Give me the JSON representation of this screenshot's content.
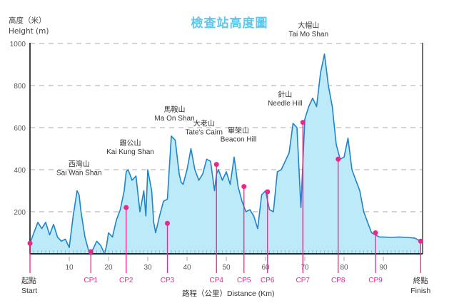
{
  "header": {
    "title": "檢查站高度圖",
    "y_label_zh": "高度（米）",
    "y_label_en": "Height (m)",
    "x_label": "路程（公里）Distance (Km)"
  },
  "colors": {
    "title": "#5cc8ec",
    "fill": "#bdeaf8",
    "line": "#1f84c8",
    "checkpoint": "#e8288a",
    "axis": "#444444",
    "grid": "#bbbbbb"
  },
  "endpoints": {
    "start_zh": "起點",
    "start_en": "Start",
    "finish_zh": "終點",
    "finish_en": "Finish"
  },
  "chart_data": {
    "type": "area",
    "title": "檢查站高度圖",
    "xlabel": "路程（公里）Distance (Km)",
    "ylabel": "高度（米）Height (m)",
    "xlim": [
      0,
      100
    ],
    "ylim": [
      0,
      1000
    ],
    "x_ticks": [
      10,
      20,
      30,
      40,
      50,
      60,
      70,
      80,
      90
    ],
    "y_ticks": [
      200,
      400,
      600,
      800,
      1000
    ],
    "grid": "horizontal dashed",
    "profile": {
      "x": [
        0,
        1,
        2,
        3,
        4,
        5,
        6,
        7,
        8,
        9,
        10,
        11,
        12,
        12.5,
        13,
        14,
        15,
        16,
        17,
        18,
        19,
        19.5,
        20,
        21,
        22,
        23,
        24,
        24.5,
        25,
        26,
        27,
        28,
        29,
        29.5,
        30,
        31,
        31.5,
        32,
        33,
        34,
        35,
        36,
        37,
        38,
        38.5,
        39,
        40,
        41,
        42,
        43,
        44,
        45,
        46,
        47,
        47.5,
        48,
        49,
        50,
        51,
        52,
        53,
        54,
        55,
        56,
        57,
        58,
        59,
        60,
        61,
        62,
        63,
        64,
        65,
        66,
        67,
        68,
        69,
        70,
        71,
        72,
        73,
        74,
        75,
        76,
        77,
        78,
        79,
        80,
        81,
        82,
        83,
        84,
        85,
        86,
        87,
        88,
        89,
        90,
        92,
        94,
        96,
        98,
        99.5
      ],
      "elevation": [
        50,
        100,
        150,
        120,
        150,
        90,
        140,
        80,
        60,
        70,
        30,
        180,
        300,
        280,
        200,
        80,
        10,
        20,
        60,
        40,
        0,
        40,
        100,
        80,
        160,
        210,
        300,
        390,
        400,
        350,
        370,
        200,
        300,
        180,
        400,
        300,
        150,
        100,
        180,
        250,
        260,
        560,
        540,
        380,
        340,
        330,
        400,
        500,
        400,
        350,
        380,
        450,
        440,
        300,
        380,
        400,
        350,
        390,
        330,
        460,
        320,
        250,
        200,
        210,
        180,
        120,
        280,
        300,
        210,
        200,
        390,
        400,
        440,
        480,
        620,
        600,
        220,
        640,
        700,
        740,
        700,
        860,
        950,
        800,
        700,
        520,
        450,
        460,
        550,
        400,
        350,
        300,
        200,
        150,
        100,
        90,
        80,
        80,
        78,
        80,
        78,
        75,
        60
      ]
    },
    "checkpoints": [
      {
        "label": "Start",
        "km": 0,
        "elevation": 50
      },
      {
        "label": "CP1",
        "km": 15.5,
        "elevation": 10
      },
      {
        "label": "CP2",
        "km": 24.5,
        "elevation": 220
      },
      {
        "label": "CP3",
        "km": 35,
        "elevation": 145
      },
      {
        "label": "CP4",
        "km": 47.5,
        "elevation": 425
      },
      {
        "label": "CP5",
        "km": 54.5,
        "elevation": 320
      },
      {
        "label": "CP6",
        "km": 60.5,
        "elevation": 295
      },
      {
        "label": "CP7",
        "km": 69.5,
        "elevation": 625
      },
      {
        "label": "CP8",
        "km": 78.5,
        "elevation": 450
      },
      {
        "label": "CP9",
        "km": 88,
        "elevation": 100
      },
      {
        "label": "Finish",
        "km": 99.5,
        "elevation": 60
      }
    ],
    "peaks": [
      {
        "zh": "西灣山",
        "en": "Sai Wan Shan",
        "km": 12.5,
        "elevation": 300
      },
      {
        "zh": "雞公山",
        "en": "Kai Kung Shan",
        "km": 27,
        "elevation": 400
      },
      {
        "zh": "馬鞍山",
        "en": "Ma On Shan",
        "km": 39,
        "elevation": 560
      },
      {
        "zh": "大老山",
        "en": "Tate's Cairn",
        "km": 44.5,
        "elevation": 500
      },
      {
        "zh": "畢架山",
        "en": "Beacon Hill",
        "km": 54,
        "elevation": 460
      },
      {
        "zh": "針山",
        "en": "Needle Hill",
        "km": 67.5,
        "elevation": 620
      },
      {
        "zh": "大帽山",
        "en": "Tai Mo Shan",
        "km": 73.5,
        "elevation": 950
      }
    ]
  }
}
